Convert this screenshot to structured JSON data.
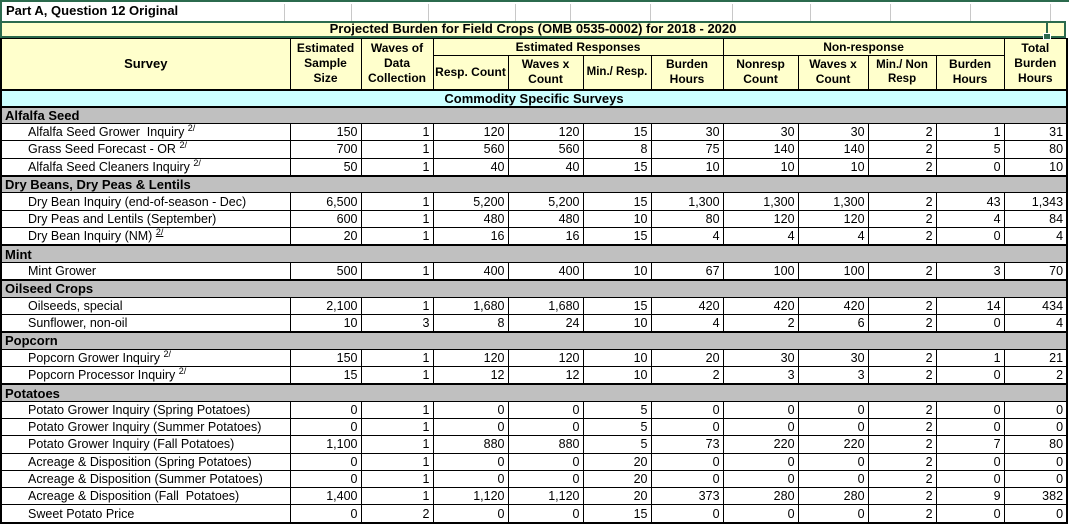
{
  "sheet_label": "Part A, Question 12 Original",
  "title": "Projected Burden for Field Crops (OMB 0535-0002) for 2018 - 2020",
  "band": "Commodity Specific Surveys",
  "footnote_marker": "2/",
  "colors": {
    "header_bg": "#FFFFCC",
    "band_bg": "#CCFFFF",
    "section_bg": "#C0C0C0",
    "selection_green": "#2B6A4D",
    "grid_black": "#000000"
  },
  "columns": {
    "survey": "Survey",
    "sample": "Estimated Sample Size",
    "waves": "Waves of Data Collection",
    "responses_group": "Estimated Responses",
    "nonresponse_group": "Non-response",
    "total": "Total Burden Hours",
    "sub": [
      "Resp. Count",
      "Waves x Count",
      "Min./ Resp.",
      "Burden Hours",
      "Nonresp Count",
      "Waves x Count",
      "Min./ Non Resp",
      "Burden Hours"
    ],
    "value_keys": [
      "sample-size",
      "waves-of-data-collection",
      "resp-count",
      "resp-waves-x-count",
      "min-per-resp",
      "resp-burden-hours",
      "nonresp-count",
      "nonresp-waves-x-count",
      "min-per-nonresp",
      "nonresp-burden-hours",
      "total-burden-hours"
    ]
  },
  "sections": [
    {
      "name": "Alfalfa Seed",
      "rows": [
        {
          "survey": "Alfalfa Seed Grower  Inquiry",
          "sup": "2/",
          "values": [
            "150",
            "1",
            "120",
            "120",
            "15",
            "30",
            "30",
            "30",
            "2",
            "1",
            "31"
          ]
        },
        {
          "survey": "Grass Seed Forecast - OR",
          "sup": "2/",
          "values": [
            "700",
            "1",
            "560",
            "560",
            "8",
            "75",
            "140",
            "140",
            "2",
            "5",
            "80"
          ]
        },
        {
          "survey": "Alfalfa Seed Cleaners Inquiry",
          "sup": "2/",
          "values": [
            "50",
            "1",
            "40",
            "40",
            "15",
            "10",
            "10",
            "10",
            "2",
            "0",
            "10"
          ]
        }
      ]
    },
    {
      "name": "Dry Beans, Dry Peas & Lentils",
      "rows": [
        {
          "survey": "Dry Bean Inquiry (end-of-season - Dec)",
          "values": [
            "6,500",
            "1",
            "5,200",
            "5,200",
            "15",
            "1,300",
            "1,300",
            "1,300",
            "2",
            "43",
            "1,343"
          ]
        },
        {
          "survey": "Dry Peas and Lentils (September)",
          "values": [
            "600",
            "1",
            "480",
            "480",
            "10",
            "80",
            "120",
            "120",
            "2",
            "4",
            "84"
          ]
        },
        {
          "survey": "Dry Bean Inquiry (NM)",
          "sup": "2/",
          "sup_underline": true,
          "values": [
            "20",
            "1",
            "16",
            "16",
            "15",
            "4",
            "4",
            "4",
            "2",
            "0",
            "4"
          ]
        }
      ]
    },
    {
      "name": "Mint",
      "rows": [
        {
          "survey": "Mint Grower",
          "values": [
            "500",
            "1",
            "400",
            "400",
            "10",
            "67",
            "100",
            "100",
            "2",
            "3",
            "70"
          ]
        }
      ]
    },
    {
      "name": "Oilseed Crops",
      "rows": [
        {
          "survey": "Oilseeds, special",
          "values": [
            "2,100",
            "1",
            "1,680",
            "1,680",
            "15",
            "420",
            "420",
            "420",
            "2",
            "14",
            "434"
          ]
        },
        {
          "survey": "Sunflower, non-oil",
          "values": [
            "10",
            "3",
            "8",
            "24",
            "10",
            "4",
            "2",
            "6",
            "2",
            "0",
            "4"
          ]
        }
      ]
    },
    {
      "name": "Popcorn",
      "rows": [
        {
          "survey": "Popcorn Grower Inquiry",
          "sup": "2/",
          "values": [
            "150",
            "1",
            "120",
            "120",
            "10",
            "20",
            "30",
            "30",
            "2",
            "1",
            "21"
          ]
        },
        {
          "survey": "Popcorn Processor Inquiry",
          "sup": "2/",
          "values": [
            "15",
            "1",
            "12",
            "12",
            "10",
            "2",
            "3",
            "3",
            "2",
            "0",
            "2"
          ]
        }
      ]
    },
    {
      "name": "Potatoes",
      "rows": [
        {
          "survey": "Potato Grower Inquiry (Spring Potatoes)",
          "values": [
            "0",
            "1",
            "0",
            "0",
            "5",
            "0",
            "0",
            "0",
            "2",
            "0",
            "0"
          ]
        },
        {
          "survey": "Potato Grower Inquiry (Summer Potatoes)",
          "values": [
            "0",
            "1",
            "0",
            "0",
            "5",
            "0",
            "0",
            "0",
            "2",
            "0",
            "0"
          ]
        },
        {
          "survey": "Potato Grower Inquiry (Fall Potatoes)",
          "values": [
            "1,100",
            "1",
            "880",
            "880",
            "5",
            "73",
            "220",
            "220",
            "2",
            "7",
            "80"
          ]
        },
        {
          "survey": "Acreage & Disposition (Spring Potatoes)",
          "values": [
            "0",
            "1",
            "0",
            "0",
            "20",
            "0",
            "0",
            "0",
            "2",
            "0",
            "0"
          ]
        },
        {
          "survey": "Acreage & Disposition (Summer Potatoes)",
          "values": [
            "0",
            "1",
            "0",
            "0",
            "20",
            "0",
            "0",
            "0",
            "2",
            "0",
            "0"
          ]
        },
        {
          "survey": "Acreage & Disposition (Fall  Potatoes)",
          "values": [
            "1,400",
            "1",
            "1,120",
            "1,120",
            "20",
            "373",
            "280",
            "280",
            "2",
            "9",
            "382"
          ]
        },
        {
          "survey": "Sweet Potato Price",
          "values": [
            "0",
            "2",
            "0",
            "0",
            "15",
            "0",
            "0",
            "0",
            "2",
            "0",
            "0"
          ]
        }
      ]
    }
  ]
}
